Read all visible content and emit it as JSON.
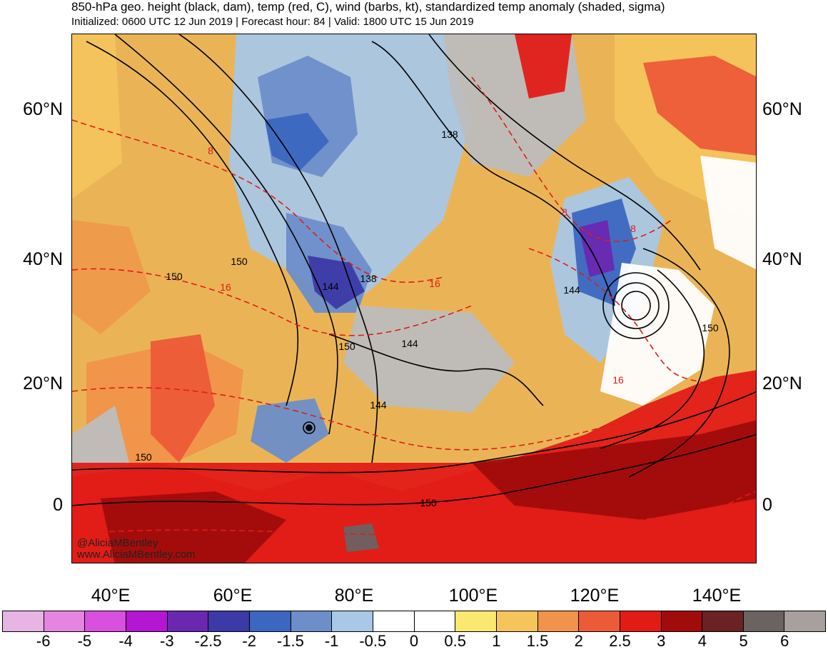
{
  "header": {
    "title": "850-hPa geo. height (black, dam), temp (red, C), wind (barbs, kt), standardized temp anomaly (shaded, sigma)",
    "subtitle": "Initialized: 0600 UTC 12 Jun 2019 | Forecast hour: 84 | Valid: 1800 UTC 15 Jun 2019"
  },
  "map": {
    "lat_labels": [
      "60°N",
      "40°N",
      "20°N",
      "0"
    ],
    "lon_labels": [
      "40°E",
      "60°E",
      "80°E",
      "100°E",
      "120°E",
      "140°E"
    ],
    "contour_labels": {
      "height": [
        "138",
        "150",
        "150",
        "144",
        "138",
        "150",
        "144",
        "144",
        "144",
        "150",
        "150",
        "150"
      ],
      "temp": [
        "8",
        "16",
        "16",
        "8",
        "8",
        "16"
      ]
    },
    "credit_handle": "@AliciaMBentley",
    "credit_url": "www.AliciaMBentley.com"
  },
  "colorbar": {
    "labels": [
      "-6",
      "-5",
      "-4",
      "-3",
      "-2.5",
      "-2",
      "-1.5",
      "-1",
      "-0.5",
      "0",
      "0.5",
      "1",
      "1.5",
      "2",
      "2.5",
      "3",
      "4",
      "5",
      "6"
    ],
    "colors": [
      "#e8b4e3",
      "#e684e2",
      "#d94fdf",
      "#b416d2",
      "#6a28b1",
      "#3c3aa6",
      "#3b67c0",
      "#6d8ec9",
      "#a9c7e6",
      "#ffffff",
      "#ffffff",
      "#fbe871",
      "#f5c45b",
      "#f1934a",
      "#ec5b37",
      "#e11c17",
      "#a00c0c",
      "#6a2222",
      "#6b6262",
      "#a89f9f"
    ]
  }
}
